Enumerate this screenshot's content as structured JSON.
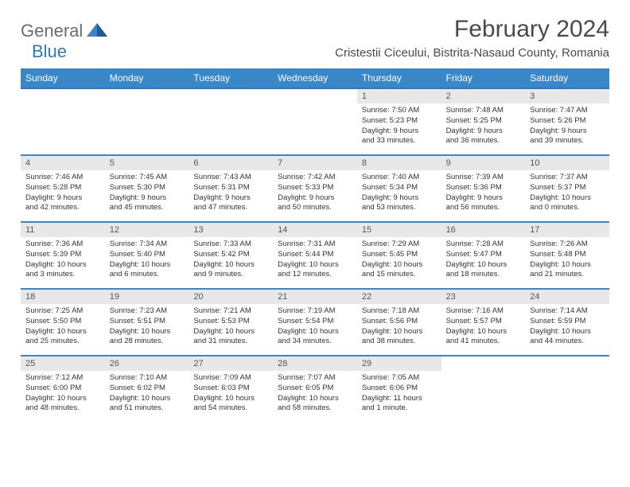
{
  "logo": {
    "general": "General",
    "blue": "Blue"
  },
  "title": "February 2024",
  "location": "Cristestii Ciceului, Bistrita-Nasaud County, Romania",
  "weekdays": [
    "Sunday",
    "Monday",
    "Tuesday",
    "Wednesday",
    "Thursday",
    "Friday",
    "Saturday"
  ],
  "colors": {
    "header_bg": "#3a87c7",
    "row_divider": "#3a87c7",
    "daynum_bg": "#e8e8e8",
    "text": "#333333",
    "title_text": "#4a4a4a",
    "logo_gray": "#6b6b6b",
    "logo_blue": "#2f78bf",
    "page_bg": "#ffffff"
  },
  "typography": {
    "title_fontsize": 30,
    "location_fontsize": 15,
    "weekday_fontsize": 12,
    "daynum_fontsize": 11,
    "dayinfo_fontsize": 9.5,
    "font_family": "Arial"
  },
  "layout": {
    "columns": 7,
    "rows": 5,
    "first_day_column_index": 4
  },
  "days": [
    {
      "n": "1",
      "sunrise": "Sunrise: 7:50 AM",
      "sunset": "Sunset: 5:23 PM",
      "d1": "Daylight: 9 hours",
      "d2": "and 33 minutes."
    },
    {
      "n": "2",
      "sunrise": "Sunrise: 7:48 AM",
      "sunset": "Sunset: 5:25 PM",
      "d1": "Daylight: 9 hours",
      "d2": "and 36 minutes."
    },
    {
      "n": "3",
      "sunrise": "Sunrise: 7:47 AM",
      "sunset": "Sunset: 5:26 PM",
      "d1": "Daylight: 9 hours",
      "d2": "and 39 minutes."
    },
    {
      "n": "4",
      "sunrise": "Sunrise: 7:46 AM",
      "sunset": "Sunset: 5:28 PM",
      "d1": "Daylight: 9 hours",
      "d2": "and 42 minutes."
    },
    {
      "n": "5",
      "sunrise": "Sunrise: 7:45 AM",
      "sunset": "Sunset: 5:30 PM",
      "d1": "Daylight: 9 hours",
      "d2": "and 45 minutes."
    },
    {
      "n": "6",
      "sunrise": "Sunrise: 7:43 AM",
      "sunset": "Sunset: 5:31 PM",
      "d1": "Daylight: 9 hours",
      "d2": "and 47 minutes."
    },
    {
      "n": "7",
      "sunrise": "Sunrise: 7:42 AM",
      "sunset": "Sunset: 5:33 PM",
      "d1": "Daylight: 9 hours",
      "d2": "and 50 minutes."
    },
    {
      "n": "8",
      "sunrise": "Sunrise: 7:40 AM",
      "sunset": "Sunset: 5:34 PM",
      "d1": "Daylight: 9 hours",
      "d2": "and 53 minutes."
    },
    {
      "n": "9",
      "sunrise": "Sunrise: 7:39 AM",
      "sunset": "Sunset: 5:36 PM",
      "d1": "Daylight: 9 hours",
      "d2": "and 56 minutes."
    },
    {
      "n": "10",
      "sunrise": "Sunrise: 7:37 AM",
      "sunset": "Sunset: 5:37 PM",
      "d1": "Daylight: 10 hours",
      "d2": "and 0 minutes."
    },
    {
      "n": "11",
      "sunrise": "Sunrise: 7:36 AM",
      "sunset": "Sunset: 5:39 PM",
      "d1": "Daylight: 10 hours",
      "d2": "and 3 minutes."
    },
    {
      "n": "12",
      "sunrise": "Sunrise: 7:34 AM",
      "sunset": "Sunset: 5:40 PM",
      "d1": "Daylight: 10 hours",
      "d2": "and 6 minutes."
    },
    {
      "n": "13",
      "sunrise": "Sunrise: 7:33 AM",
      "sunset": "Sunset: 5:42 PM",
      "d1": "Daylight: 10 hours",
      "d2": "and 9 minutes."
    },
    {
      "n": "14",
      "sunrise": "Sunrise: 7:31 AM",
      "sunset": "Sunset: 5:44 PM",
      "d1": "Daylight: 10 hours",
      "d2": "and 12 minutes."
    },
    {
      "n": "15",
      "sunrise": "Sunrise: 7:29 AM",
      "sunset": "Sunset: 5:45 PM",
      "d1": "Daylight: 10 hours",
      "d2": "and 15 minutes."
    },
    {
      "n": "16",
      "sunrise": "Sunrise: 7:28 AM",
      "sunset": "Sunset: 5:47 PM",
      "d1": "Daylight: 10 hours",
      "d2": "and 18 minutes."
    },
    {
      "n": "17",
      "sunrise": "Sunrise: 7:26 AM",
      "sunset": "Sunset: 5:48 PM",
      "d1": "Daylight: 10 hours",
      "d2": "and 21 minutes."
    },
    {
      "n": "18",
      "sunrise": "Sunrise: 7:25 AM",
      "sunset": "Sunset: 5:50 PM",
      "d1": "Daylight: 10 hours",
      "d2": "and 25 minutes."
    },
    {
      "n": "19",
      "sunrise": "Sunrise: 7:23 AM",
      "sunset": "Sunset: 5:51 PM",
      "d1": "Daylight: 10 hours",
      "d2": "and 28 minutes."
    },
    {
      "n": "20",
      "sunrise": "Sunrise: 7:21 AM",
      "sunset": "Sunset: 5:53 PM",
      "d1": "Daylight: 10 hours",
      "d2": "and 31 minutes."
    },
    {
      "n": "21",
      "sunrise": "Sunrise: 7:19 AM",
      "sunset": "Sunset: 5:54 PM",
      "d1": "Daylight: 10 hours",
      "d2": "and 34 minutes."
    },
    {
      "n": "22",
      "sunrise": "Sunrise: 7:18 AM",
      "sunset": "Sunset: 5:56 PM",
      "d1": "Daylight: 10 hours",
      "d2": "and 38 minutes."
    },
    {
      "n": "23",
      "sunrise": "Sunrise: 7:16 AM",
      "sunset": "Sunset: 5:57 PM",
      "d1": "Daylight: 10 hours",
      "d2": "and 41 minutes."
    },
    {
      "n": "24",
      "sunrise": "Sunrise: 7:14 AM",
      "sunset": "Sunset: 5:59 PM",
      "d1": "Daylight: 10 hours",
      "d2": "and 44 minutes."
    },
    {
      "n": "25",
      "sunrise": "Sunrise: 7:12 AM",
      "sunset": "Sunset: 6:00 PM",
      "d1": "Daylight: 10 hours",
      "d2": "and 48 minutes."
    },
    {
      "n": "26",
      "sunrise": "Sunrise: 7:10 AM",
      "sunset": "Sunset: 6:02 PM",
      "d1": "Daylight: 10 hours",
      "d2": "and 51 minutes."
    },
    {
      "n": "27",
      "sunrise": "Sunrise: 7:09 AM",
      "sunset": "Sunset: 6:03 PM",
      "d1": "Daylight: 10 hours",
      "d2": "and 54 minutes."
    },
    {
      "n": "28",
      "sunrise": "Sunrise: 7:07 AM",
      "sunset": "Sunset: 6:05 PM",
      "d1": "Daylight: 10 hours",
      "d2": "and 58 minutes."
    },
    {
      "n": "29",
      "sunrise": "Sunrise: 7:05 AM",
      "sunset": "Sunset: 6:06 PM",
      "d1": "Daylight: 11 hours",
      "d2": "and 1 minute."
    }
  ]
}
